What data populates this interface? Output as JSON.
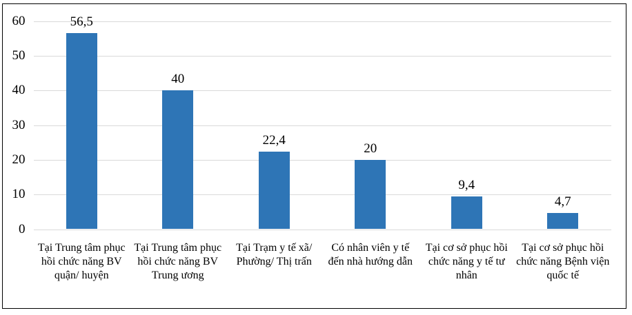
{
  "chart_data": {
    "type": "bar",
    "title": "",
    "xlabel": "",
    "ylabel": "",
    "categories": [
      "Tại Trung tâm phục hồi chức năng BV quận/ huyện",
      "Tại Trung tâm phục hồi chức năng BV Trung ương",
      "Tại Trạm y tế xã/ Phường/ Thị trấn",
      "Có nhân viên y tế đến nhà hướng dẫn",
      "Tại cơ sở phục hồi chức năng y tế tư nhân",
      "Tại cơ sở phục hồi chức năng Bệnh viện quốc tế"
    ],
    "values": [
      56.5,
      40,
      22.4,
      20,
      9.4,
      4.7
    ],
    "value_labels": [
      "56,5",
      "40",
      "22,4",
      "20",
      "9,4",
      "4,7"
    ],
    "ylim": [
      0,
      60
    ],
    "yticks": [
      0,
      10,
      20,
      30,
      40,
      50,
      60
    ],
    "grid": true,
    "legend_position": "none",
    "colors": {
      "bar": "#2e75b6",
      "gridline": "#d9d9d9",
      "frame_border": "#000000",
      "text": "#000000",
      "background": "#ffffff"
    }
  }
}
